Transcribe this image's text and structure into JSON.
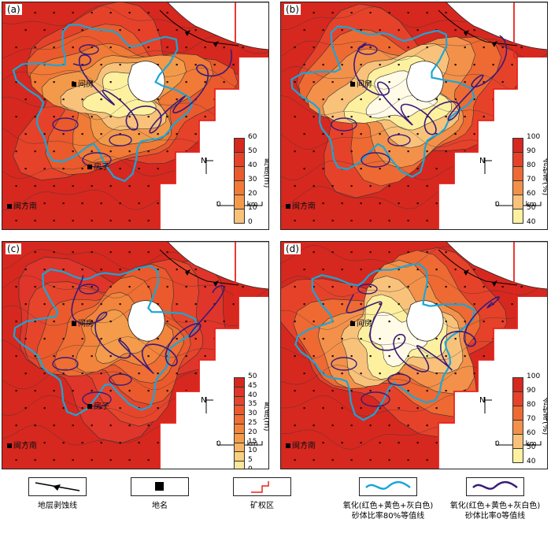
{
  "panels": [
    {
      "label": "(a)",
      "places": [
        "间房",
        "房子",
        "闽方南"
      ],
      "north": "N",
      "scale": {
        "start": "0",
        "end": "4 km"
      },
      "colorbar": {
        "title": "厚度(m)",
        "ticks": [
          "60",
          "50",
          "40",
          "30",
          "20",
          "10",
          "0"
        ],
        "colors": [
          "#d6281f",
          "#e6422a",
          "#ea5a2c",
          "#f07a36",
          "#f39a4a",
          "#f8c27a",
          "#fdf1a0"
        ]
      }
    },
    {
      "label": "(b)",
      "places": [
        "间房",
        "闽方南"
      ],
      "north": "N",
      "scale": {
        "start": "0",
        "end": "4 km"
      },
      "colorbar": {
        "title": "含砂率(%)",
        "ticks": [
          "100",
          "90",
          "80",
          "70",
          "60",
          "50",
          "40"
        ],
        "colors": [
          "#d6281f",
          "#e6422a",
          "#ee6a32",
          "#f3914a",
          "#f8c27a",
          "#fdf1a0",
          "#fffbe6"
        ]
      }
    },
    {
      "label": "(c)",
      "places": [
        "间房",
        "房子",
        "闽方南"
      ],
      "north": "N",
      "scale": {
        "start": "0",
        "end": "4 km"
      },
      "colorbar": {
        "title": "厚度(m)",
        "ticks": [
          "50",
          "45",
          "40",
          "35",
          "30",
          "25",
          "20",
          "15",
          "10",
          "5",
          "0"
        ],
        "colors": [
          "#d6281f",
          "#e0352a",
          "#e6452c",
          "#ea5a2c",
          "#ef6e33",
          "#f2843c",
          "#f49c4b",
          "#f6b560",
          "#f9cf80",
          "#fbe69c",
          "#fef6c0"
        ]
      }
    },
    {
      "label": "(d)",
      "places": [
        "间房",
        "闽方南"
      ],
      "north": "N",
      "scale": {
        "start": "0",
        "end": "4 km"
      },
      "colorbar": {
        "title": "含砂率(%)",
        "ticks": [
          "100",
          "90",
          "80",
          "70",
          "60",
          "50",
          "40"
        ],
        "colors": [
          "#d6281f",
          "#e6422a",
          "#ee6a32",
          "#f3914a",
          "#f8c27a",
          "#fdf1a0",
          "#fffbe6"
        ]
      }
    }
  ],
  "legend": [
    {
      "key": "erosion-line",
      "label": "地层剥蚀线"
    },
    {
      "key": "place-name",
      "label": "地名"
    },
    {
      "key": "mining-area",
      "label": "矿权区"
    },
    {
      "key": "line-80",
      "label": "氧化(红色+黄色+灰白色)\n砂体比率80%等值线"
    },
    {
      "key": "line-0",
      "label": "氧化(红色+黄色+灰白色)\n砂体比率0等值线"
    }
  ],
  "colors": {
    "blue_line": "#1aa6d8",
    "purple_line": "#3a1a7a",
    "mining": "#e8231b"
  }
}
